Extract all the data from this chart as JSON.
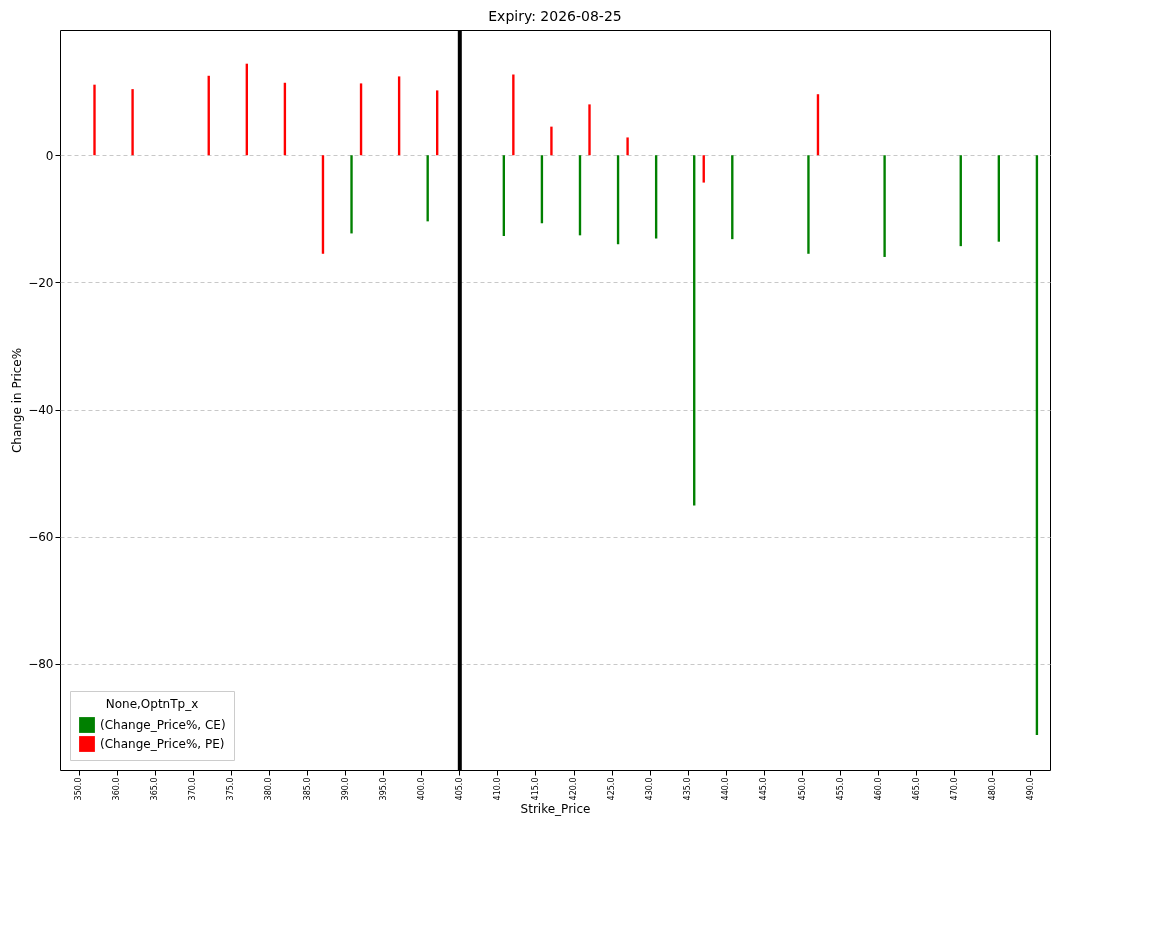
{
  "chart_data": {
    "type": "bar",
    "title": "Expiry: 2026-08-25",
    "xlabel": "Strike_Price",
    "ylabel": "Change in Price%",
    "legend_title": "None,OptnTp_x",
    "categories": [
      "350.0",
      "360.0",
      "365.0",
      "370.0",
      "375.0",
      "380.0",
      "385.0",
      "390.0",
      "395.0",
      "400.0",
      "405.0",
      "410.0",
      "415.0",
      "420.0",
      "425.0",
      "430.0",
      "435.0",
      "440.0",
      "445.0",
      "450.0",
      "455.0",
      "460.0",
      "465.0",
      "470.0",
      "480.0",
      "490.0"
    ],
    "series": [
      {
        "name": "(Change_Price%, CE)",
        "color": "#008000",
        "values": [
          null,
          null,
          null,
          null,
          null,
          null,
          null,
          -12.3,
          null,
          -10.4,
          null,
          -12.7,
          -10.7,
          -12.6,
          -14.0,
          -13.1,
          -55.1,
          -13.2,
          null,
          -15.5,
          null,
          -16.0,
          null,
          -14.3,
          -13.6,
          -91.2
        ]
      },
      {
        "name": "(Change_Price%, PE)",
        "color": "#ff0000",
        "values": [
          11.1,
          10.4,
          null,
          12.5,
          14.4,
          11.4,
          -15.5,
          11.3,
          12.4,
          10.2,
          null,
          12.7,
          4.5,
          8.0,
          2.8,
          null,
          -4.3,
          null,
          null,
          9.6,
          null,
          null,
          null,
          null,
          null,
          null
        ]
      }
    ],
    "ylim": [
      -96.7,
      19.7
    ],
    "yticks": [
      0,
      -20,
      -40,
      -60,
      -80
    ],
    "grid": "y",
    "legend": "bottom left",
    "ref_lines": [
      {
        "axis": "x",
        "value": "405.0",
        "color": "#000000"
      }
    ]
  }
}
